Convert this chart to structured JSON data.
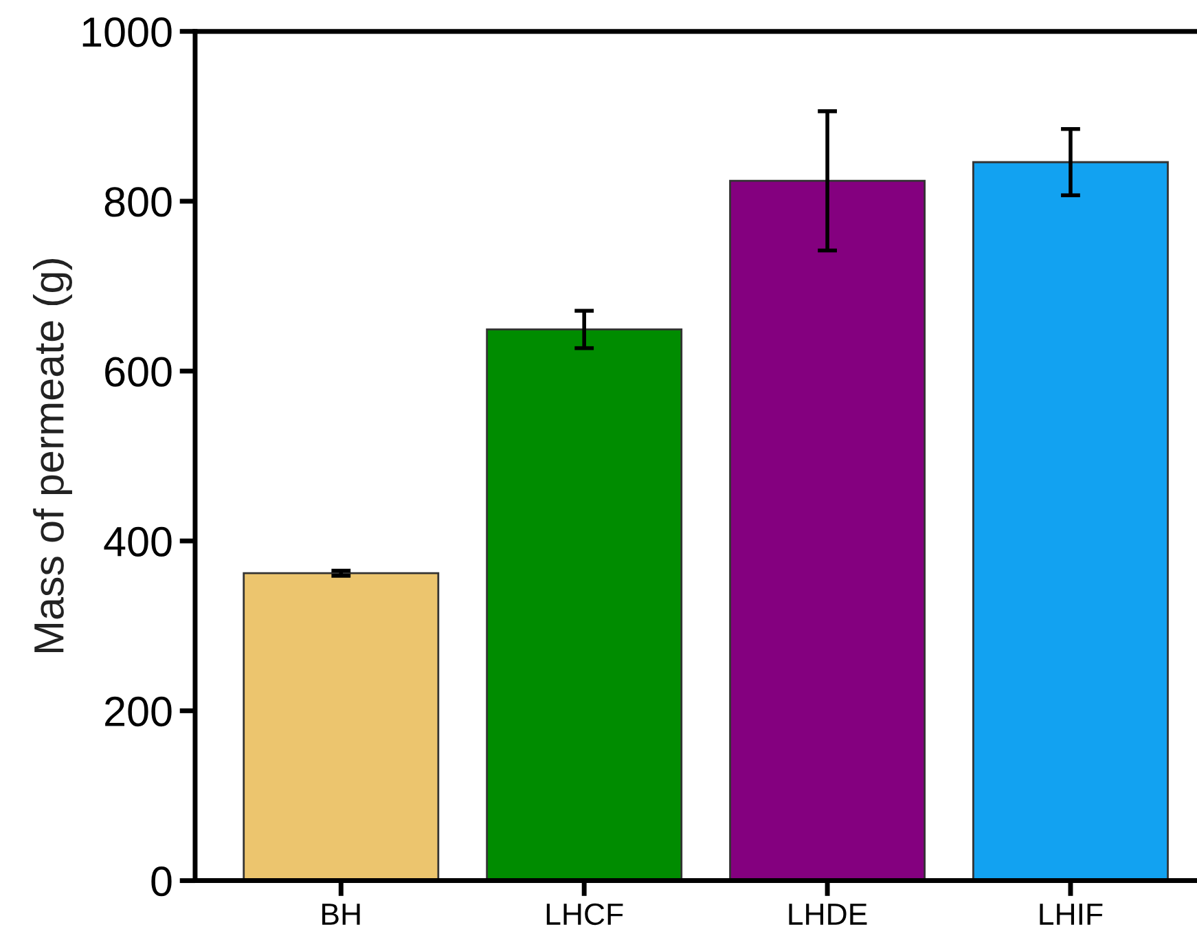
{
  "chart_data": {
    "type": "bar",
    "ylabel": "Mass of permeate (g)",
    "categories": [
      "BH",
      "LHCF",
      "LHDE",
      "LHIF"
    ],
    "values": [
      362,
      649,
      824,
      846
    ],
    "errors": [
      3,
      22,
      82,
      39
    ],
    "colors": [
      "#ecc56e",
      "#008c00",
      "#84007f",
      "#12a2f1"
    ],
    "ylim": [
      0,
      1000
    ],
    "yticks": [
      0,
      200,
      400,
      600,
      800,
      1000
    ],
    "grid": false
  }
}
